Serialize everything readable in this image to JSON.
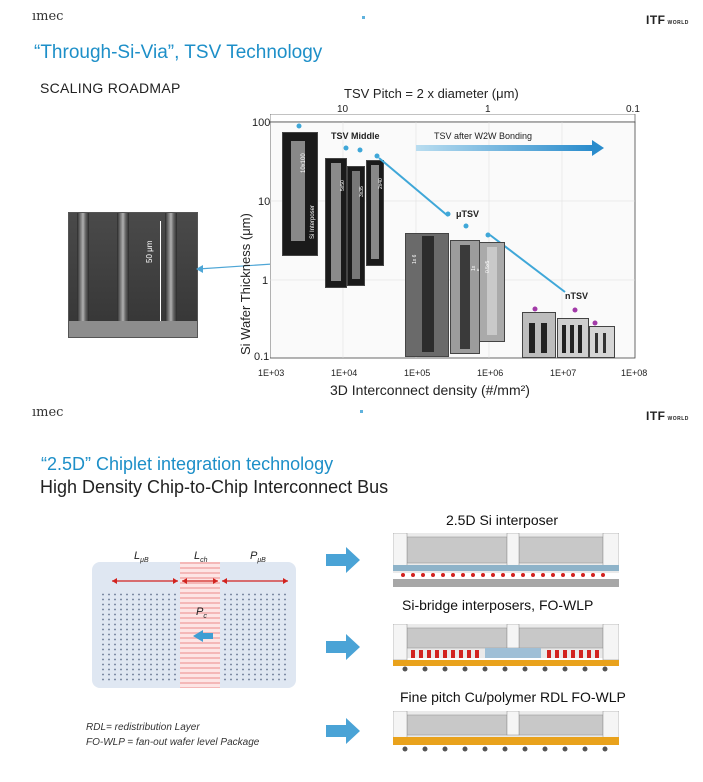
{
  "slide1": {
    "logo_left": "ımec",
    "logo_right": "ITF",
    "logo_right_small": "WORLD",
    "title": "“Through-Si-Via”, TSV Technology",
    "subtitle": "SCALING ROADMAP",
    "micrograph_label": "50 μm",
    "chart": {
      "top_axis_label": "TSV Pitch = 2 x diameter (μm)",
      "top_ticks": [
        "10",
        "1",
        "0.1"
      ],
      "y_axis_label": "Si Wafer Thickness (μm)",
      "y_ticks": [
        "100",
        "10",
        "1",
        "0.1"
      ],
      "x_axis_label": "3D Interconnect density (#/mm²)",
      "x_ticks": [
        "1E+03",
        "1E+04",
        "1E+05",
        "1E+06",
        "1E+07",
        "1E+08"
      ],
      "annotations": {
        "tsv_middle": "TSV Middle",
        "tsv_after": "TSV after W2W Bonding",
        "utsv": "μTSV",
        "ntsv": "nTSV",
        "si_interposer": "Si Interposer",
        "img_a": "10x100",
        "img_b": "5x50",
        "img_c": "3x35",
        "img_d": "2x40",
        "img_e": "1x 6",
        "img_f": "1x 5",
        "img_g": "0.5x5"
      }
    }
  },
  "slide2": {
    "logo_left": "ımec",
    "logo_right": "ITF",
    "logo_right_small": "WORLD",
    "title": "“2.5D” Chiplet integration technology",
    "subtitle": "High Density Chip-to-Chip Interconnect Bus",
    "bus_labels": {
      "l_ub": "L",
      "l_ub_sub": "μB",
      "l_ch": "L",
      "l_ch_sub": "ch",
      "p_ub": "P",
      "p_ub_sub": "μB",
      "p_c": "P",
      "p_c_sub": "c"
    },
    "captions": {
      "c1": "2.5D Si interposer",
      "c2": "Si-bridge interposers, FO-WLP",
      "c3": "Fine pitch Cu/polymer RDL FO-WLP"
    },
    "notes": {
      "rdl": "RDL= redistribution Layer",
      "fowlp": "FO-WLP = fan-out wafer level Package"
    }
  },
  "colors": {
    "accent_blue": "#1d8fc8",
    "arrow_blue": "#3f9ed3",
    "bump_red": "#d2231f",
    "rdl_orange": "#e9a21c"
  }
}
